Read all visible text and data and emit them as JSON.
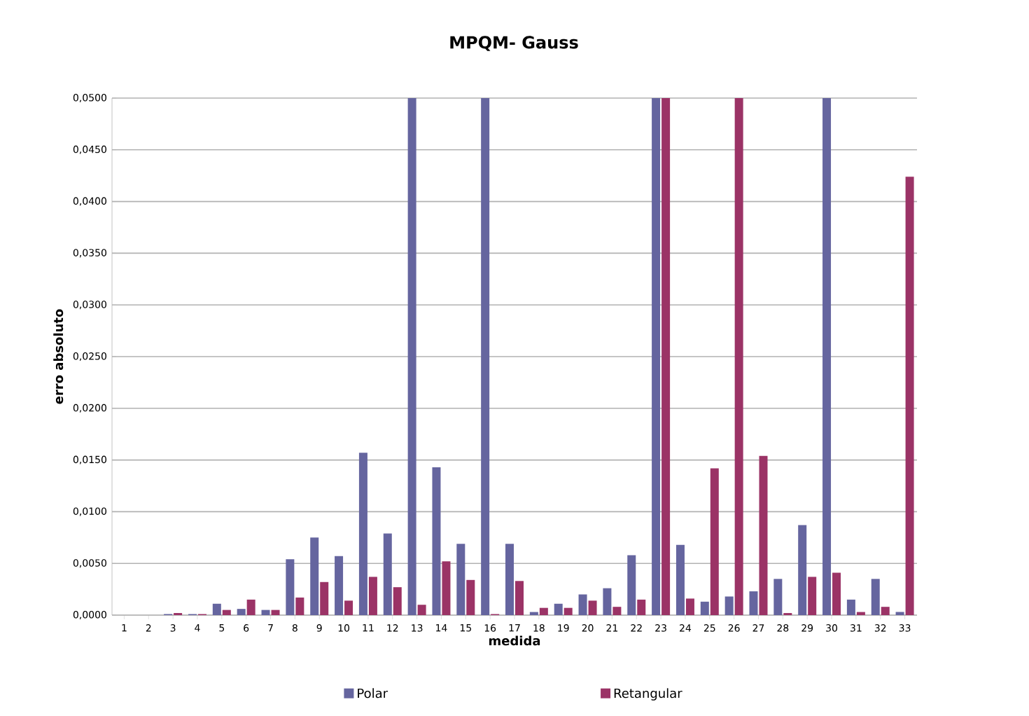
{
  "chart_data": {
    "type": "bar",
    "title": "MPQM- Gauss",
    "xlabel": "medida",
    "ylabel": "erro absoluto",
    "categories": [
      "1",
      "2",
      "3",
      "4",
      "5",
      "6",
      "7",
      "8",
      "9",
      "10",
      "11",
      "12",
      "13",
      "14",
      "15",
      "16",
      "17",
      "18",
      "19",
      "20",
      "21",
      "22",
      "23",
      "24",
      "25",
      "26",
      "27",
      "28",
      "29",
      "30",
      "31",
      "32",
      "33"
    ],
    "series": [
      {
        "name": "Polar",
        "color": "#65659f",
        "values": [
          0,
          0,
          0.0001,
          0.0001,
          0.0011,
          0.0006,
          0.0005,
          0.0054,
          0.0075,
          0.0057,
          0.0157,
          0.0079,
          0.05,
          0.0143,
          0.0069,
          0.05,
          0.0069,
          0.0003,
          0.0011,
          0.002,
          0.0026,
          0.0058,
          0.05,
          0.0068,
          0.0013,
          0.0018,
          0.0023,
          0.0035,
          0.0087,
          0.05,
          0.0015,
          0.0035,
          0.0003
        ]
      },
      {
        "name": "Retangular",
        "color": "#9b3366",
        "values": [
          0,
          0,
          0.0002,
          0.0001,
          0.0005,
          0.0015,
          0.0005,
          0.0017,
          0.0032,
          0.0014,
          0.0037,
          0.0027,
          0.001,
          0.0052,
          0.0034,
          0.0001,
          0.0033,
          0.0007,
          0.0007,
          0.0014,
          0.0008,
          0.0015,
          0.05,
          0.0016,
          0.0142,
          0.05,
          0.0154,
          0.0002,
          0.0037,
          0.0041,
          0.0003,
          0.0008,
          0.0424
        ]
      }
    ],
    "ylim": [
      0,
      0.05
    ],
    "yticks": [
      {
        "value": 0,
        "label": "0,0000"
      },
      {
        "value": 0.005,
        "label": "0,0050"
      },
      {
        "value": 0.01,
        "label": "0,0100"
      },
      {
        "value": 0.015,
        "label": "0,0150"
      },
      {
        "value": 0.02,
        "label": "0,0200"
      },
      {
        "value": 0.025,
        "label": "0,0250"
      },
      {
        "value": 0.03,
        "label": "0,0300"
      },
      {
        "value": 0.035,
        "label": "0,0350"
      },
      {
        "value": 0.04,
        "label": "0,0400"
      },
      {
        "value": 0.045,
        "label": "0,0450"
      },
      {
        "value": 0.05,
        "label": "0,0500"
      }
    ],
    "grid": "y",
    "legend": "bottom"
  }
}
